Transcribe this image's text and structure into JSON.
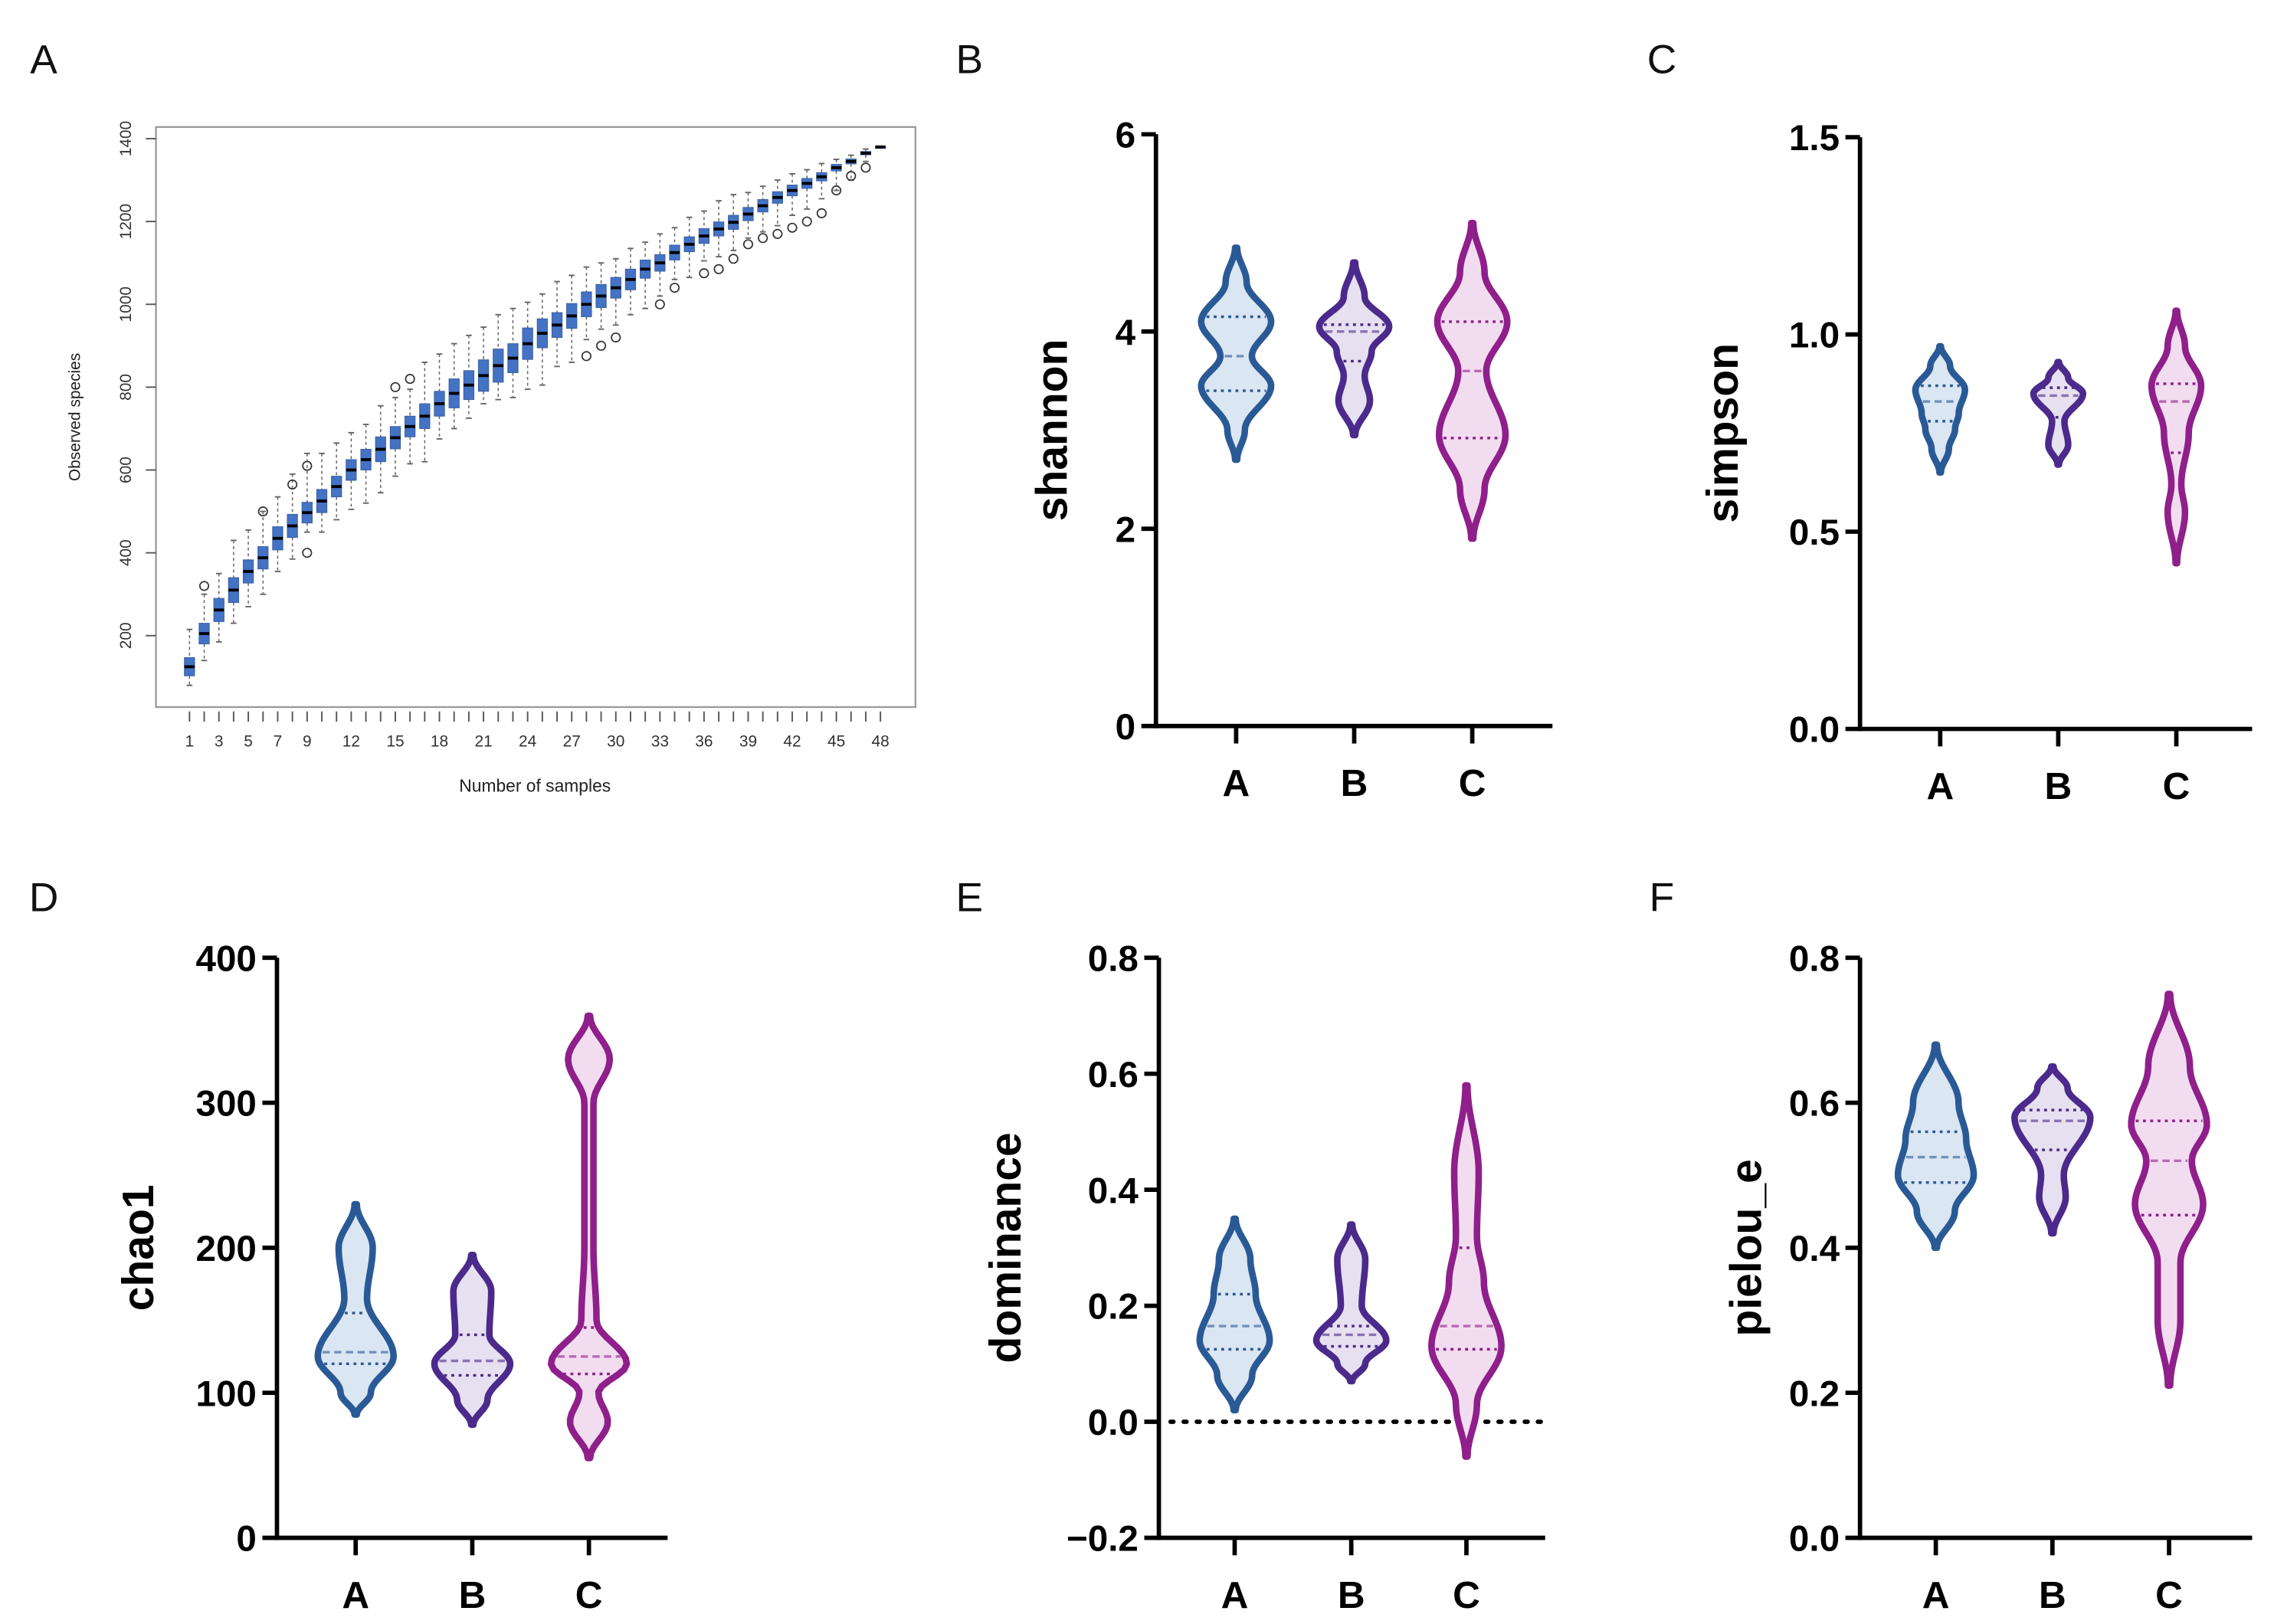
{
  "chart_data": [
    {
      "panel": "A",
      "type": "box",
      "xlabel": "Number of samples",
      "ylabel": "Observed species",
      "yticks": [
        200,
        400,
        600,
        800,
        1000,
        1200,
        1400
      ],
      "xtick_labels": [
        "1",
        "3",
        "5",
        "7",
        "9",
        "12",
        "15",
        "18",
        "21",
        "24",
        "27",
        "30",
        "33",
        "36",
        "39",
        "42",
        "45",
        "48"
      ],
      "ylim": [
        40,
        1430
      ],
      "x": [
        1,
        2,
        3,
        4,
        5,
        6,
        7,
        8,
        9,
        10,
        11,
        12,
        13,
        14,
        15,
        16,
        17,
        18,
        19,
        20,
        21,
        22,
        23,
        24,
        25,
        26,
        27,
        28,
        29,
        30,
        31,
        32,
        33,
        34,
        35,
        36,
        37,
        38,
        39,
        40,
        41,
        42,
        43,
        44,
        45,
        46,
        47,
        48
      ],
      "median": [
        125,
        205,
        262,
        310,
        355,
        388,
        435,
        465,
        497,
        525,
        560,
        600,
        625,
        650,
        678,
        705,
        730,
        760,
        785,
        805,
        828,
        852,
        870,
        905,
        930,
        950,
        972,
        1000,
        1020,
        1040,
        1060,
        1085,
        1100,
        1125,
        1145,
        1165,
        1182,
        1198,
        1218,
        1238,
        1258,
        1275,
        1292,
        1308,
        1330,
        1345,
        1365,
        1380
      ],
      "iqr_half": [
        22,
        25,
        28,
        30,
        28,
        27,
        28,
        28,
        25,
        28,
        25,
        25,
        25,
        30,
        27,
        25,
        30,
        30,
        35,
        35,
        38,
        40,
        35,
        38,
        35,
        30,
        30,
        30,
        28,
        25,
        25,
        22,
        20,
        18,
        18,
        18,
        17,
        17,
        16,
        15,
        14,
        13,
        12,
        10,
        8,
        6,
        4,
        0
      ],
      "whisker_low": [
        80,
        140,
        185,
        230,
        270,
        300,
        355,
        385,
        450,
        450,
        480,
        505,
        520,
        545,
        585,
        615,
        620,
        675,
        700,
        725,
        760,
        770,
        775,
        795,
        805,
        850,
        860,
        915,
        940,
        950,
        975,
        990,
        1020,
        1060,
        1065,
        1105,
        1115,
        1130,
        1160,
        1175,
        1190,
        1215,
        1230,
        1255,
        1275,
        1300,
        1345,
        1380
      ],
      "whisker_high": [
        215,
        300,
        350,
        430,
        455,
        500,
        535,
        590,
        640,
        640,
        665,
        690,
        710,
        755,
        775,
        795,
        860,
        880,
        905,
        925,
        945,
        975,
        990,
        1005,
        1025,
        1055,
        1070,
        1090,
        1100,
        1110,
        1135,
        1150,
        1170,
        1185,
        1210,
        1225,
        1250,
        1265,
        1270,
        1285,
        1300,
        1315,
        1325,
        1340,
        1350,
        1360,
        1375,
        1380
      ],
      "outliers": [
        [
          2,
          320
        ],
        [
          6,
          500
        ],
        [
          8,
          565
        ],
        [
          9,
          610
        ],
        [
          9,
          400
        ],
        [
          15,
          800
        ],
        [
          16,
          820
        ],
        [
          28,
          875
        ],
        [
          29,
          900
        ],
        [
          30,
          920
        ],
        [
          33,
          1000
        ],
        [
          34,
          1040
        ],
        [
          36,
          1075
        ],
        [
          37,
          1085
        ],
        [
          38,
          1110
        ],
        [
          39,
          1145
        ],
        [
          40,
          1160
        ],
        [
          41,
          1170
        ],
        [
          42,
          1185
        ],
        [
          43,
          1200
        ],
        [
          44,
          1220
        ],
        [
          45,
          1275
        ],
        [
          46,
          1310
        ],
        [
          47,
          1330
        ]
      ]
    },
    {
      "panel": "B",
      "type": "violin",
      "ylabel": "shannon",
      "ylim": [
        0,
        6
      ],
      "yticks": [
        "0",
        "2",
        "4",
        "6"
      ],
      "categories": [
        "A",
        "B",
        "C"
      ],
      "groups": [
        {
          "name": "A",
          "min": 2.7,
          "max": 4.85,
          "quartiles": [
            3.4,
            3.75,
            4.15
          ],
          "density": [
            [
              2.7,
              0.03
            ],
            [
              3.0,
              0.25
            ],
            [
              3.45,
              1
            ],
            [
              3.75,
              0.45
            ],
            [
              4.1,
              1
            ],
            [
              4.5,
              0.3
            ],
            [
              4.85,
              0.03
            ]
          ]
        },
        {
          "name": "B",
          "min": 2.95,
          "max": 4.7,
          "quartiles": [
            3.7,
            4.0,
            4.07
          ],
          "density": [
            [
              2.95,
              0.03
            ],
            [
              3.3,
              0.45
            ],
            [
              3.55,
              0.3
            ],
            [
              3.8,
              0.5
            ],
            [
              4.05,
              1
            ],
            [
              4.35,
              0.3
            ],
            [
              4.7,
              0.03
            ]
          ]
        },
        {
          "name": "C",
          "min": 1.9,
          "max": 5.1,
          "quartiles": [
            2.92,
            3.6,
            4.1
          ],
          "density": [
            [
              1.9,
              0.03
            ],
            [
              2.4,
              0.35
            ],
            [
              2.95,
              0.95
            ],
            [
              3.6,
              0.4
            ],
            [
              4.1,
              1
            ],
            [
              4.6,
              0.35
            ],
            [
              5.1,
              0.03
            ]
          ]
        }
      ]
    },
    {
      "panel": "C",
      "type": "violin",
      "ylabel": "simpson",
      "ylim": [
        0,
        1.5
      ],
      "yticks": [
        "0.0",
        "0.5",
        "1.0",
        "1.5"
      ],
      "categories": [
        "A",
        "B",
        "C"
      ],
      "groups": [
        {
          "name": "A",
          "min": 0.65,
          "max": 0.97,
          "quartiles": [
            0.78,
            0.83,
            0.87
          ],
          "density": [
            [
              0.65,
              0.03
            ],
            [
              0.71,
              0.35
            ],
            [
              0.76,
              0.6
            ],
            [
              0.8,
              0.75
            ],
            [
              0.86,
              1
            ],
            [
              0.92,
              0.4
            ],
            [
              0.97,
              0.03
            ]
          ]
        },
        {
          "name": "B",
          "min": 0.67,
          "max": 0.93,
          "quartiles": [
            0.79,
            0.845,
            0.865
          ],
          "density": [
            [
              0.67,
              0.03
            ],
            [
              0.72,
              0.4
            ],
            [
              0.78,
              0.25
            ],
            [
              0.85,
              1
            ],
            [
              0.89,
              0.4
            ],
            [
              0.93,
              0.03
            ]
          ]
        },
        {
          "name": "C",
          "min": 0.42,
          "max": 1.06,
          "quartiles": [
            0.7,
            0.83,
            0.875
          ],
          "density": [
            [
              0.42,
              0.03
            ],
            [
              0.55,
              0.35
            ],
            [
              0.62,
              0.2
            ],
            [
              0.75,
              0.5
            ],
            [
              0.87,
              1
            ],
            [
              0.97,
              0.35
            ],
            [
              1.06,
              0.03
            ]
          ]
        }
      ]
    },
    {
      "panel": "D",
      "type": "violin",
      "ylabel": "chao1",
      "ylim": [
        0,
        400
      ],
      "yticks": [
        "0",
        "100",
        "200",
        "300",
        "400"
      ],
      "categories": [
        "A",
        "B",
        "C"
      ],
      "groups": [
        {
          "name": "A",
          "min": 85,
          "max": 230,
          "quartiles": [
            120,
            128,
            155
          ],
          "density": [
            [
              85,
              0.03
            ],
            [
              100,
              0.4
            ],
            [
              125,
              1
            ],
            [
              165,
              0.3
            ],
            [
              200,
              0.45
            ],
            [
              230,
              0.03
            ]
          ]
        },
        {
          "name": "B",
          "min": 78,
          "max": 195,
          "quartiles": [
            112,
            122,
            140
          ],
          "density": [
            [
              78,
              0.03
            ],
            [
              95,
              0.4
            ],
            [
              120,
              1
            ],
            [
              140,
              0.45
            ],
            [
              170,
              0.5
            ],
            [
              195,
              0.03
            ]
          ]
        },
        {
          "name": "C",
          "min": 55,
          "max": 360,
          "quartiles": [
            113,
            125,
            145
          ],
          "density": [
            [
              55,
              0.03
            ],
            [
              80,
              0.5
            ],
            [
              100,
              0.25
            ],
            [
              120,
              1
            ],
            [
              150,
              0.2
            ],
            [
              200,
              0.12
            ],
            [
              300,
              0.12
            ],
            [
              330,
              0.55
            ],
            [
              360,
              0.03
            ]
          ]
        }
      ]
    },
    {
      "panel": "E",
      "type": "violin",
      "ylabel": "dominance",
      "ylim": [
        -0.2,
        0.8
      ],
      "yticks": [
        "−0.2",
        "0.0",
        "0.2",
        "0.4",
        "0.6",
        "0.8"
      ],
      "categories": [
        "A",
        "B",
        "C"
      ],
      "reference_line": 0,
      "groups": [
        {
          "name": "A",
          "min": 0.02,
          "max": 0.35,
          "quartiles": [
            0.125,
            0.165,
            0.22
          ],
          "density": [
            [
              0.02,
              0.03
            ],
            [
              0.08,
              0.5
            ],
            [
              0.14,
              1
            ],
            [
              0.22,
              0.6
            ],
            [
              0.28,
              0.45
            ],
            [
              0.35,
              0.03
            ]
          ]
        },
        {
          "name": "B",
          "min": 0.07,
          "max": 0.34,
          "quartiles": [
            0.13,
            0.15,
            0.165
          ],
          "density": [
            [
              0.07,
              0.03
            ],
            [
              0.1,
              0.4
            ],
            [
              0.14,
              1
            ],
            [
              0.2,
              0.3
            ],
            [
              0.28,
              0.4
            ],
            [
              0.34,
              0.03
            ]
          ]
        },
        {
          "name": "C",
          "min": -0.06,
          "max": 0.58,
          "quartiles": [
            0.125,
            0.165,
            0.3
          ],
          "density": [
            [
              -0.06,
              0.03
            ],
            [
              0.03,
              0.3
            ],
            [
              0.13,
              1
            ],
            [
              0.24,
              0.5
            ],
            [
              0.32,
              0.3
            ],
            [
              0.43,
              0.35
            ],
            [
              0.58,
              0.03
            ]
          ]
        }
      ]
    },
    {
      "panel": "F",
      "type": "violin",
      "ylabel": "pielou_e",
      "ylim": [
        0,
        0.8
      ],
      "yticks": [
        "0.0",
        "0.2",
        "0.4",
        "0.6",
        "0.8"
      ],
      "categories": [
        "A",
        "B",
        "C"
      ],
      "groups": [
        {
          "name": "A",
          "min": 0.4,
          "max": 0.68,
          "quartiles": [
            0.49,
            0.525,
            0.56
          ],
          "density": [
            [
              0.4,
              0.03
            ],
            [
              0.45,
              0.5
            ],
            [
              0.5,
              1
            ],
            [
              0.55,
              0.8
            ],
            [
              0.6,
              0.6
            ],
            [
              0.68,
              0.03
            ]
          ]
        },
        {
          "name": "B",
          "min": 0.42,
          "max": 0.65,
          "quartiles": [
            0.535,
            0.575,
            0.59
          ],
          "density": [
            [
              0.42,
              0.03
            ],
            [
              0.47,
              0.35
            ],
            [
              0.5,
              0.3
            ],
            [
              0.58,
              1
            ],
            [
              0.62,
              0.4
            ],
            [
              0.65,
              0.03
            ]
          ]
        },
        {
          "name": "C",
          "min": 0.21,
          "max": 0.75,
          "quartiles": [
            0.445,
            0.52,
            0.575
          ],
          "density": [
            [
              0.21,
              0.03
            ],
            [
              0.3,
              0.3
            ],
            [
              0.38,
              0.3
            ],
            [
              0.46,
              0.9
            ],
            [
              0.52,
              0.6
            ],
            [
              0.57,
              1
            ],
            [
              0.65,
              0.55
            ],
            [
              0.75,
              0.03
            ]
          ]
        }
      ]
    }
  ],
  "colors": {
    "A": {
      "stroke": "#2a5a96",
      "fill": "#dbe6f3"
    },
    "B": {
      "stroke": "#4b2a8c",
      "fill": "#e6e0f0"
    },
    "C": {
      "stroke": "#8f1f8a",
      "fill": "#f2ddf0"
    },
    "box_fill": "#4472c4"
  }
}
